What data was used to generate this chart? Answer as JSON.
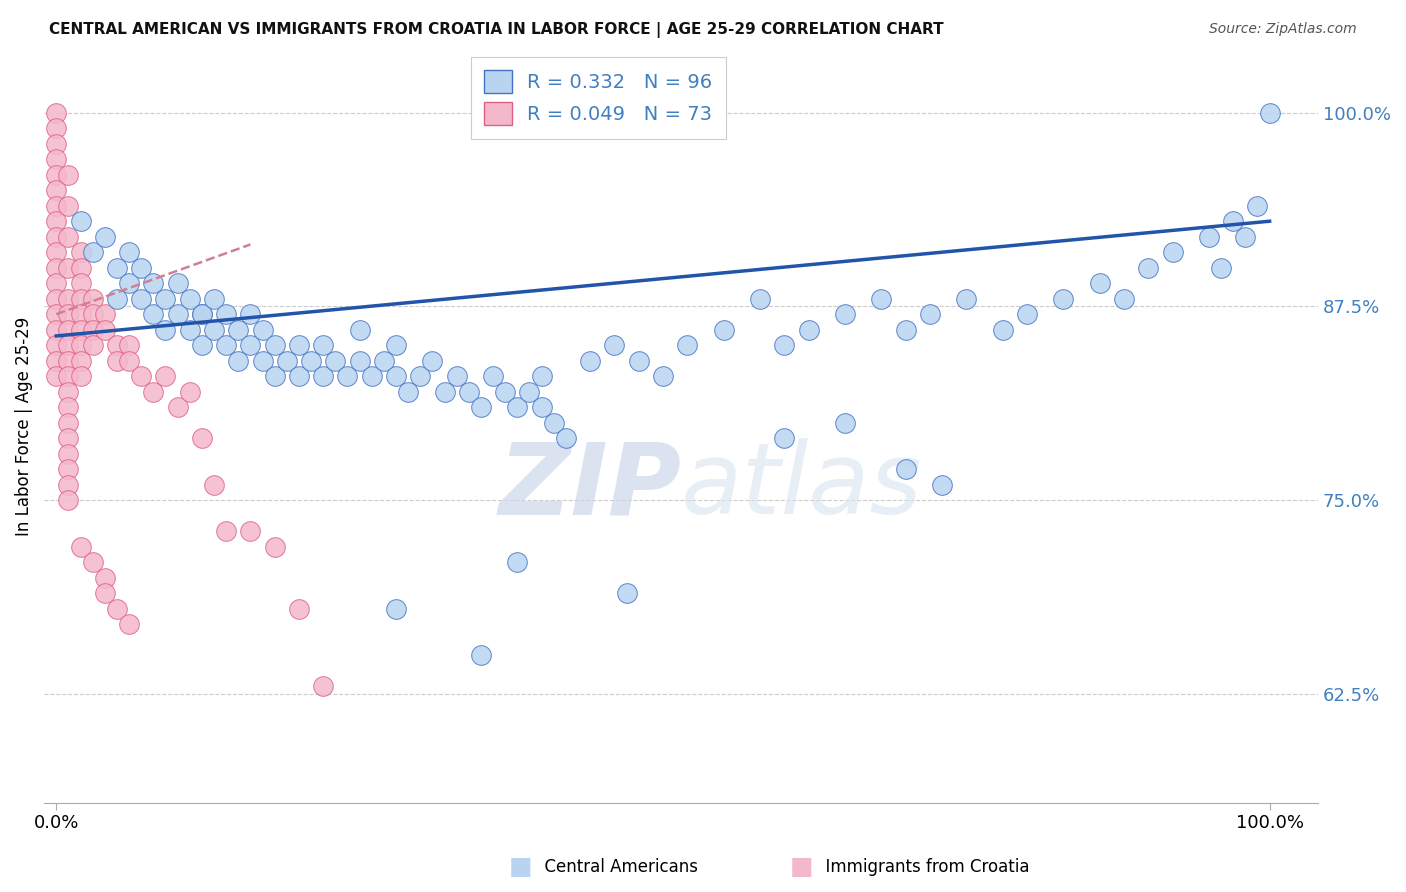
{
  "title": "CENTRAL AMERICAN VS IMMIGRANTS FROM CROATIA IN LABOR FORCE | AGE 25-29 CORRELATION CHART",
  "source": "Source: ZipAtlas.com",
  "ylabel": "In Labor Force | Age 25-29",
  "legend_label1": "Central Americans",
  "legend_label2": "Immigrants from Croatia",
  "R1": 0.332,
  "N1": 96,
  "R2": 0.049,
  "N2": 73,
  "blue_fill": "#b8d4f0",
  "blue_edge": "#4472c4",
  "pink_fill": "#f4b8cc",
  "pink_edge": "#e06080",
  "blue_line_color": "#2255aa",
  "pink_line_color": "#d08090",
  "watermark_color": "#d0dff0",
  "grid_color": "#cccccc",
  "right_tick_color": "#4080c0",
  "yticks_right": [
    0.625,
    0.75,
    0.875,
    1.0
  ],
  "ytick_labels_right": [
    "62.5%",
    "75.0%",
    "87.5%",
    "100.0%"
  ],
  "ymin": 0.555,
  "ymax": 1.04,
  "xmin": -0.01,
  "xmax": 1.04,
  "blue_trend_x": [
    0.0,
    1.0
  ],
  "blue_trend_y": [
    0.856,
    0.93
  ],
  "pink_trend_x": [
    0.0,
    0.16
  ],
  "pink_trend_y": [
    0.87,
    0.915
  ],
  "blue_x": [
    0.02,
    0.03,
    0.04,
    0.05,
    0.05,
    0.06,
    0.06,
    0.07,
    0.07,
    0.08,
    0.08,
    0.09,
    0.09,
    0.1,
    0.1,
    0.11,
    0.11,
    0.12,
    0.12,
    0.12,
    0.13,
    0.13,
    0.14,
    0.14,
    0.15,
    0.15,
    0.16,
    0.16,
    0.17,
    0.17,
    0.18,
    0.18,
    0.19,
    0.2,
    0.2,
    0.21,
    0.22,
    0.22,
    0.23,
    0.24,
    0.25,
    0.25,
    0.26,
    0.27,
    0.28,
    0.28,
    0.29,
    0.3,
    0.31,
    0.32,
    0.33,
    0.34,
    0.35,
    0.36,
    0.37,
    0.38,
    0.39,
    0.4,
    0.4,
    0.41,
    0.42,
    0.44,
    0.46,
    0.48,
    0.5,
    0.52,
    0.55,
    0.58,
    0.6,
    0.62,
    0.65,
    0.68,
    0.7,
    0.72,
    0.75,
    0.78,
    0.8,
    0.83,
    0.86,
    0.88,
    0.9,
    0.92,
    0.95,
    0.96,
    0.97,
    0.98,
    0.99,
    1.0,
    0.6,
    0.65,
    0.7,
    0.73,
    0.47,
    0.38,
    0.28,
    0.35
  ],
  "blue_y": [
    0.93,
    0.91,
    0.92,
    0.9,
    0.88,
    0.91,
    0.89,
    0.9,
    0.88,
    0.89,
    0.87,
    0.88,
    0.86,
    0.87,
    0.89,
    0.88,
    0.86,
    0.87,
    0.85,
    0.87,
    0.86,
    0.88,
    0.85,
    0.87,
    0.86,
    0.84,
    0.85,
    0.87,
    0.84,
    0.86,
    0.85,
    0.83,
    0.84,
    0.85,
    0.83,
    0.84,
    0.83,
    0.85,
    0.84,
    0.83,
    0.84,
    0.86,
    0.83,
    0.84,
    0.83,
    0.85,
    0.82,
    0.83,
    0.84,
    0.82,
    0.83,
    0.82,
    0.81,
    0.83,
    0.82,
    0.81,
    0.82,
    0.81,
    0.83,
    0.8,
    0.79,
    0.84,
    0.85,
    0.84,
    0.83,
    0.85,
    0.86,
    0.88,
    0.85,
    0.86,
    0.87,
    0.88,
    0.86,
    0.87,
    0.88,
    0.86,
    0.87,
    0.88,
    0.89,
    0.88,
    0.9,
    0.91,
    0.92,
    0.9,
    0.93,
    0.92,
    0.94,
    1.0,
    0.79,
    0.8,
    0.77,
    0.76,
    0.69,
    0.71,
    0.68,
    0.65
  ],
  "pink_x": [
    0.0,
    0.0,
    0.0,
    0.0,
    0.0,
    0.0,
    0.0,
    0.0,
    0.0,
    0.0,
    0.0,
    0.0,
    0.0,
    0.0,
    0.0,
    0.0,
    0.0,
    0.0,
    0.01,
    0.01,
    0.01,
    0.01,
    0.01,
    0.01,
    0.01,
    0.01,
    0.01,
    0.01,
    0.01,
    0.01,
    0.01,
    0.01,
    0.01,
    0.01,
    0.01,
    0.01,
    0.02,
    0.02,
    0.02,
    0.02,
    0.02,
    0.02,
    0.02,
    0.02,
    0.02,
    0.03,
    0.03,
    0.03,
    0.03,
    0.04,
    0.04,
    0.05,
    0.05,
    0.06,
    0.06,
    0.07,
    0.08,
    0.09,
    0.1,
    0.11,
    0.12,
    0.13,
    0.14,
    0.16,
    0.18,
    0.2,
    0.22,
    0.02,
    0.03,
    0.04,
    0.04,
    0.05,
    0.06
  ],
  "pink_y": [
    1.0,
    0.99,
    0.98,
    0.97,
    0.96,
    0.95,
    0.94,
    0.93,
    0.92,
    0.91,
    0.9,
    0.89,
    0.88,
    0.87,
    0.86,
    0.85,
    0.84,
    0.83,
    0.96,
    0.94,
    0.92,
    0.9,
    0.88,
    0.87,
    0.86,
    0.85,
    0.84,
    0.83,
    0.82,
    0.81,
    0.8,
    0.79,
    0.78,
    0.77,
    0.76,
    0.75,
    0.91,
    0.9,
    0.89,
    0.88,
    0.87,
    0.86,
    0.85,
    0.84,
    0.83,
    0.88,
    0.87,
    0.86,
    0.85,
    0.87,
    0.86,
    0.85,
    0.84,
    0.85,
    0.84,
    0.83,
    0.82,
    0.83,
    0.81,
    0.82,
    0.79,
    0.76,
    0.73,
    0.73,
    0.72,
    0.68,
    0.63,
    0.72,
    0.71,
    0.7,
    0.69,
    0.68,
    0.67
  ]
}
